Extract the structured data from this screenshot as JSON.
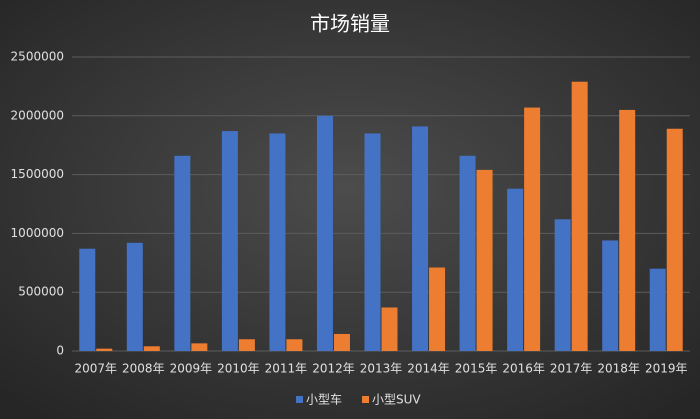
{
  "chart_data": {
    "type": "bar",
    "title": "市场销量",
    "categories": [
      "2007年",
      "2008年",
      "2009年",
      "2010年",
      "2011年",
      "2012年",
      "2013年",
      "2014年",
      "2015年",
      "2016年",
      "2017年",
      "2018年",
      "2019年"
    ],
    "series": [
      {
        "name": "小型车",
        "color": "#4472c4",
        "values": [
          870000,
          920000,
          1660000,
          1870000,
          1850000,
          2000000,
          1850000,
          1910000,
          1660000,
          1380000,
          1120000,
          940000,
          700000
        ]
      },
      {
        "name": "小型SUV",
        "color": "#ed7d31",
        "values": [
          20000,
          40000,
          65000,
          100000,
          100000,
          145000,
          370000,
          710000,
          1540000,
          2070000,
          2290000,
          2050000,
          1890000
        ]
      }
    ],
    "ylim": [
      0,
      2500000
    ],
    "yticks": [
      0,
      500000,
      1000000,
      1500000,
      2000000,
      2500000
    ],
    "grid": true,
    "legend": "bottom"
  }
}
